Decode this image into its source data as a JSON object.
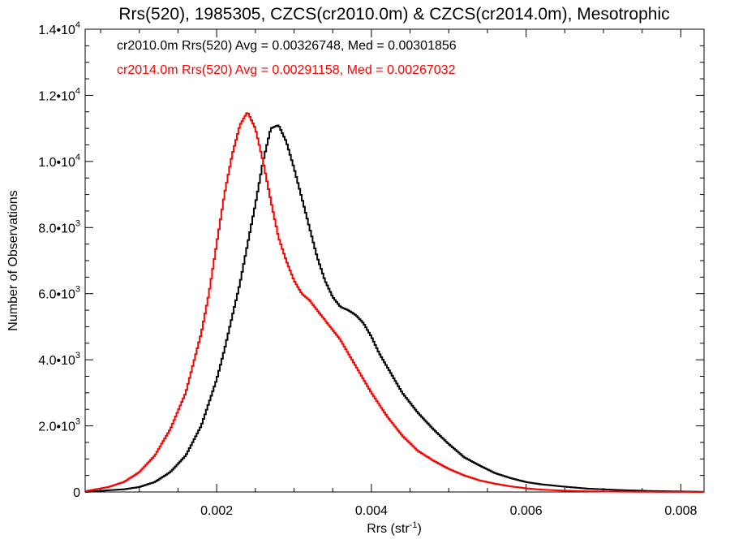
{
  "chart_data": {
    "type": "line",
    "title": "Rrs(520), 1985305, CZCS(cr2010.0m) & CZCS(cr2014.0m), Mesotrophic",
    "xlabel": "Rrs (str",
    "xlabel_sup": "-1",
    "xlabel_end": ")",
    "ylabel": "Number of Observations",
    "xlim": [
      0.0003,
      0.0083
    ],
    "ylim": [
      0,
      14000
    ],
    "x_ticks": [
      0.002,
      0.004,
      0.006,
      0.008
    ],
    "x_tick_labels": [
      "0.002",
      "0.004",
      "0.006",
      "0.008"
    ],
    "y_ticks": [
      0,
      2000,
      4000,
      6000,
      8000,
      10000,
      12000,
      14000
    ],
    "y_tick_labels": [
      {
        "base": "0",
        "exp": ""
      },
      {
        "base": "2.0•10",
        "exp": "3"
      },
      {
        "base": "4.0•10",
        "exp": "3"
      },
      {
        "base": "6.0•10",
        "exp": "3"
      },
      {
        "base": "8.0•10",
        "exp": "3"
      },
      {
        "base": "1.0•10",
        "exp": "4"
      },
      {
        "base": "1.2•10",
        "exp": "4"
      },
      {
        "base": "1.4•10",
        "exp": "4"
      }
    ],
    "grid": false,
    "legend_position": "top-left",
    "annotations": [
      {
        "text": "cr2010.0m Rrs(520) Avg = 0.00326748, Med = 0.00301856",
        "color": "#000000"
      },
      {
        "text": "cr2014.0m Rrs(520) Avg = 0.00291158, Med = 0.00267032",
        "color": "#ff0000"
      }
    ],
    "series": [
      {
        "color": "#000000",
        "x": [
          0.0003,
          0.0006,
          0.0008,
          0.001,
          0.0012,
          0.0014,
          0.0016,
          0.0018,
          0.002,
          0.0021,
          0.0022,
          0.0023,
          0.0024,
          0.0025,
          0.0026,
          0.0027,
          0.0028,
          0.0029,
          0.003,
          0.0031,
          0.0032,
          0.0033,
          0.0034,
          0.0035,
          0.0036,
          0.0037,
          0.0038,
          0.0039,
          0.004,
          0.0041,
          0.0042,
          0.0043,
          0.0044,
          0.0046,
          0.0048,
          0.005,
          0.0052,
          0.0054,
          0.0056,
          0.0058,
          0.006,
          0.0062,
          0.0065,
          0.0068,
          0.0072,
          0.0076,
          0.008,
          0.0083
        ],
        "y": [
          0,
          50,
          80,
          150,
          300,
          600,
          1100,
          2000,
          3400,
          4300,
          5300,
          6300,
          7500,
          8700,
          10000,
          11000,
          11100,
          10600,
          9800,
          8900,
          8000,
          7100,
          6400,
          5900,
          5600,
          5500,
          5350,
          5100,
          4700,
          4200,
          3800,
          3400,
          3000,
          2400,
          1900,
          1450,
          1050,
          800,
          570,
          420,
          300,
          230,
          160,
          100,
          60,
          30,
          15,
          5
        ]
      },
      {
        "color": "#ff0000",
        "x": [
          0.0003,
          0.0006,
          0.0008,
          0.001,
          0.0012,
          0.0014,
          0.0016,
          0.0018,
          0.0019,
          0.002,
          0.0021,
          0.0022,
          0.0023,
          0.0024,
          0.0025,
          0.0026,
          0.0027,
          0.0028,
          0.0029,
          0.003,
          0.0031,
          0.0032,
          0.0033,
          0.0034,
          0.0035,
          0.0036,
          0.0037,
          0.0038,
          0.0039,
          0.004,
          0.0041,
          0.0042,
          0.0043,
          0.0044,
          0.0046,
          0.0048,
          0.005,
          0.0052,
          0.0054,
          0.0056,
          0.0058,
          0.006,
          0.0062,
          0.0065,
          0.0068,
          0.0072,
          0.0076,
          0.008,
          0.0083
        ],
        "y": [
          20,
          150,
          300,
          600,
          1100,
          1900,
          3000,
          4800,
          6000,
          7500,
          9000,
          10200,
          11100,
          11500,
          11000,
          10000,
          8800,
          7700,
          7000,
          6400,
          6000,
          5800,
          5500,
          5200,
          4900,
          4600,
          4200,
          3800,
          3400,
          3000,
          2650,
          2300,
          2000,
          1700,
          1250,
          950,
          700,
          500,
          350,
          250,
          170,
          110,
          70,
          40,
          20,
          10,
          5,
          2,
          1
        ]
      }
    ]
  }
}
